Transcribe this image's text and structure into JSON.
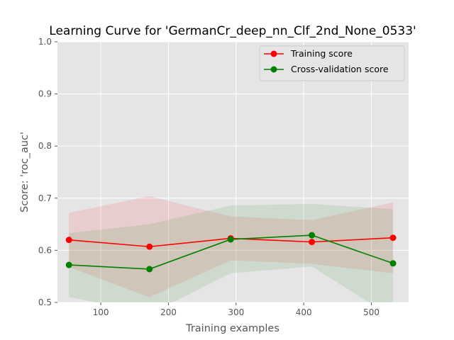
{
  "chart_data": {
    "type": "line",
    "title": "Learning Curve for 'GermanCr_deep_nn_Clf_2nd_None_0533'",
    "xlabel": "Training examples",
    "ylabel": "Score: 'roc_auc'",
    "xlim": [
      36,
      555
    ],
    "ylim": [
      0.5,
      1.0
    ],
    "xticks": [
      100,
      200,
      300,
      400,
      500
    ],
    "yticks": [
      0.5,
      0.6,
      0.7,
      0.8,
      0.9,
      1.0
    ],
    "grid": true,
    "legend_position": "top-right",
    "x": [
      53,
      172,
      292,
      412,
      532
    ],
    "series": [
      {
        "name": "Training score",
        "color": "#ff0000",
        "values": [
          0.62,
          0.607,
          0.623,
          0.616,
          0.624
        ],
        "upper": [
          0.672,
          0.704,
          0.665,
          0.658,
          0.692
        ],
        "lower": [
          0.568,
          0.51,
          0.581,
          0.574,
          0.556
        ]
      },
      {
        "name": "Cross-validation score",
        "color": "#008000",
        "values": [
          0.572,
          0.564,
          0.621,
          0.629,
          0.575
        ],
        "upper": [
          0.633,
          0.65,
          0.686,
          0.689,
          0.679
        ],
        "lower": [
          0.511,
          0.478,
          0.556,
          0.569,
          0.471
        ]
      }
    ]
  }
}
